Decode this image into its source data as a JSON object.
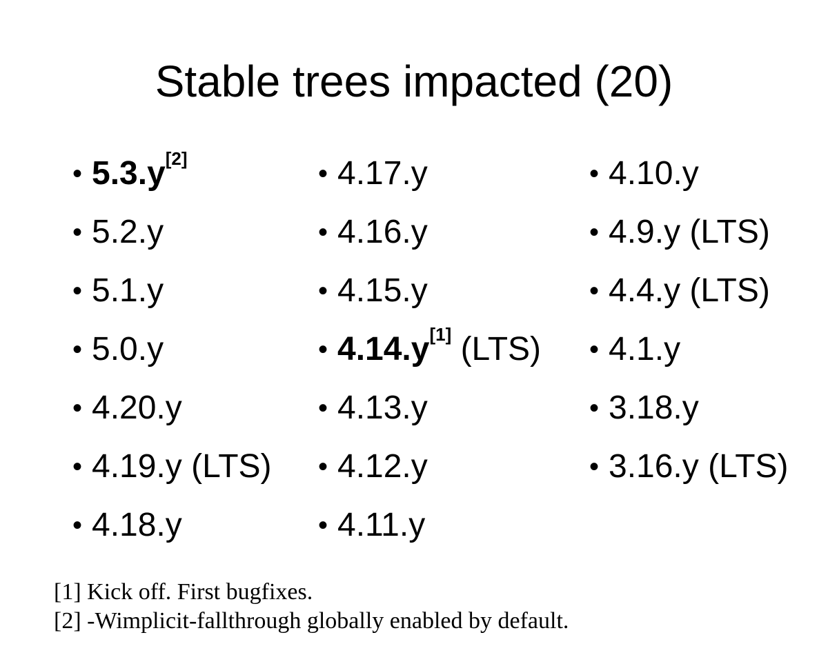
{
  "title": "Stable trees impacted (20)",
  "bullet_glyph": "•",
  "columns": [
    {
      "items": [
        {
          "label": "5.3.y",
          "ref": "[2]",
          "suffix": "",
          "bold": true
        },
        {
          "label": "5.2.y",
          "ref": "",
          "suffix": "",
          "bold": false
        },
        {
          "label": "5.1.y",
          "ref": "",
          "suffix": "",
          "bold": false
        },
        {
          "label": "5.0.y",
          "ref": "",
          "suffix": "",
          "bold": false
        },
        {
          "label": "4.20.y",
          "ref": "",
          "suffix": "",
          "bold": false
        },
        {
          "label": "4.19.y (LTS)",
          "ref": "",
          "suffix": "",
          "bold": false
        },
        {
          "label": "4.18.y",
          "ref": "",
          "suffix": "",
          "bold": false
        }
      ]
    },
    {
      "items": [
        {
          "label": "4.17.y",
          "ref": "",
          "suffix": "",
          "bold": false
        },
        {
          "label": "4.16.y",
          "ref": "",
          "suffix": "",
          "bold": false
        },
        {
          "label": "4.15.y",
          "ref": "",
          "suffix": "",
          "bold": false
        },
        {
          "label": "4.14.y",
          "ref": "[1]",
          "suffix": " (LTS)",
          "bold": true
        },
        {
          "label": "4.13.y",
          "ref": "",
          "suffix": "",
          "bold": false
        },
        {
          "label": "4.12.y",
          "ref": "",
          "suffix": "",
          "bold": false
        },
        {
          "label": "4.11.y",
          "ref": "",
          "suffix": "",
          "bold": false
        }
      ]
    },
    {
      "items": [
        {
          "label": "4.10.y",
          "ref": "",
          "suffix": "",
          "bold": false
        },
        {
          "label": "4.9.y (LTS)",
          "ref": "",
          "suffix": "",
          "bold": false
        },
        {
          "label": "4.4.y (LTS)",
          "ref": "",
          "suffix": "",
          "bold": false
        },
        {
          "label": "4.1.y",
          "ref": "",
          "suffix": "",
          "bold": false
        },
        {
          "label": "3.18.y",
          "ref": "",
          "suffix": "",
          "bold": false
        },
        {
          "label": "3.16.y (LTS)",
          "ref": "",
          "suffix": "",
          "bold": false
        }
      ]
    }
  ],
  "footnotes": [
    "[1] Kick off. First bugfixes.",
    "[2] -Wimplicit-fallthrough globally enabled by default."
  ]
}
